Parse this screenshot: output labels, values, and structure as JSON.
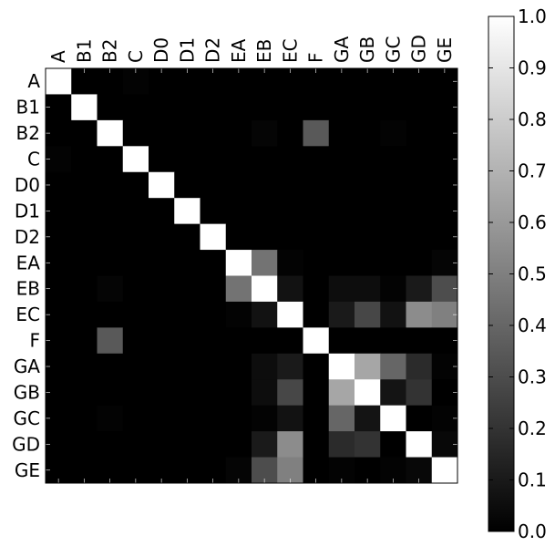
{
  "chart_data": {
    "type": "heatmap",
    "title": "",
    "xlabel": "",
    "ylabel": "",
    "labels": [
      "A",
      "B1",
      "B2",
      "C",
      "D0",
      "D1",
      "D2",
      "EA",
      "EB",
      "EC",
      "F",
      "GA",
      "GB",
      "GC",
      "GD",
      "GE"
    ],
    "colormap": "gray",
    "vmin": 0.0,
    "vmax": 1.0,
    "colorbar_ticks": [
      "0.0",
      "0.1",
      "0.2",
      "0.3",
      "0.4",
      "0.5",
      "0.6",
      "0.7",
      "0.8",
      "0.9",
      "1.0"
    ],
    "matrix": [
      [
        1.0,
        0.0,
        0.0,
        0.01,
        0.0,
        0.0,
        0.0,
        0.0,
        0.0,
        0.0,
        0.0,
        0.0,
        0.0,
        0.0,
        0.0,
        0.0
      ],
      [
        0.0,
        1.0,
        0.0,
        0.0,
        0.0,
        0.0,
        0.0,
        0.0,
        0.0,
        0.0,
        0.0,
        0.0,
        0.0,
        0.0,
        0.0,
        0.0
      ],
      [
        0.0,
        0.0,
        1.0,
        0.0,
        0.0,
        0.0,
        0.0,
        0.0,
        0.02,
        0.0,
        0.35,
        0.0,
        0.0,
        0.01,
        0.0,
        0.0
      ],
      [
        0.01,
        0.0,
        0.0,
        1.0,
        0.0,
        0.0,
        0.0,
        0.0,
        0.0,
        0.0,
        0.0,
        0.0,
        0.0,
        0.0,
        0.0,
        0.0
      ],
      [
        0.0,
        0.0,
        0.0,
        0.0,
        1.0,
        0.0,
        0.0,
        0.0,
        0.0,
        0.0,
        0.0,
        0.0,
        0.0,
        0.0,
        0.0,
        0.0
      ],
      [
        0.0,
        0.0,
        0.0,
        0.0,
        0.0,
        1.0,
        0.0,
        0.0,
        0.0,
        0.0,
        0.0,
        0.0,
        0.0,
        0.0,
        0.0,
        0.0
      ],
      [
        0.0,
        0.0,
        0.0,
        0.0,
        0.0,
        0.0,
        1.0,
        0.0,
        0.0,
        0.0,
        0.0,
        0.0,
        0.0,
        0.0,
        0.0,
        0.0
      ],
      [
        0.0,
        0.0,
        0.0,
        0.0,
        0.0,
        0.0,
        0.0,
        1.0,
        0.45,
        0.01,
        0.0,
        0.0,
        0.0,
        0.0,
        0.0,
        0.02
      ],
      [
        0.0,
        0.0,
        0.02,
        0.0,
        0.0,
        0.0,
        0.0,
        0.45,
        1.0,
        0.07,
        0.0,
        0.05,
        0.05,
        0.01,
        0.1,
        0.3
      ],
      [
        0.0,
        0.0,
        0.0,
        0.0,
        0.0,
        0.0,
        0.0,
        0.01,
        0.07,
        1.0,
        0.0,
        0.1,
        0.28,
        0.07,
        0.55,
        0.5
      ],
      [
        0.0,
        0.0,
        0.35,
        0.0,
        0.0,
        0.0,
        0.0,
        0.0,
        0.0,
        0.0,
        1.0,
        0.0,
        0.0,
        0.0,
        0.0,
        0.0
      ],
      [
        0.0,
        0.0,
        0.0,
        0.0,
        0.0,
        0.0,
        0.0,
        0.0,
        0.05,
        0.1,
        0.0,
        1.0,
        0.65,
        0.4,
        0.17,
        0.01
      ],
      [
        0.0,
        0.0,
        0.0,
        0.0,
        0.0,
        0.0,
        0.0,
        0.0,
        0.05,
        0.28,
        0.0,
        0.65,
        1.0,
        0.08,
        0.2,
        0.0
      ],
      [
        0.0,
        0.0,
        0.01,
        0.0,
        0.0,
        0.0,
        0.0,
        0.0,
        0.01,
        0.07,
        0.0,
        0.4,
        0.08,
        1.0,
        0.0,
        0.01
      ],
      [
        0.0,
        0.0,
        0.0,
        0.0,
        0.0,
        0.0,
        0.0,
        0.0,
        0.1,
        0.55,
        0.0,
        0.17,
        0.2,
        0.0,
        1.0,
        0.03
      ],
      [
        0.0,
        0.0,
        0.0,
        0.0,
        0.0,
        0.0,
        0.0,
        0.02,
        0.3,
        0.5,
        0.0,
        0.01,
        0.0,
        0.01,
        0.03,
        1.0
      ]
    ],
    "grid": false,
    "legend": "colorbar-right"
  }
}
